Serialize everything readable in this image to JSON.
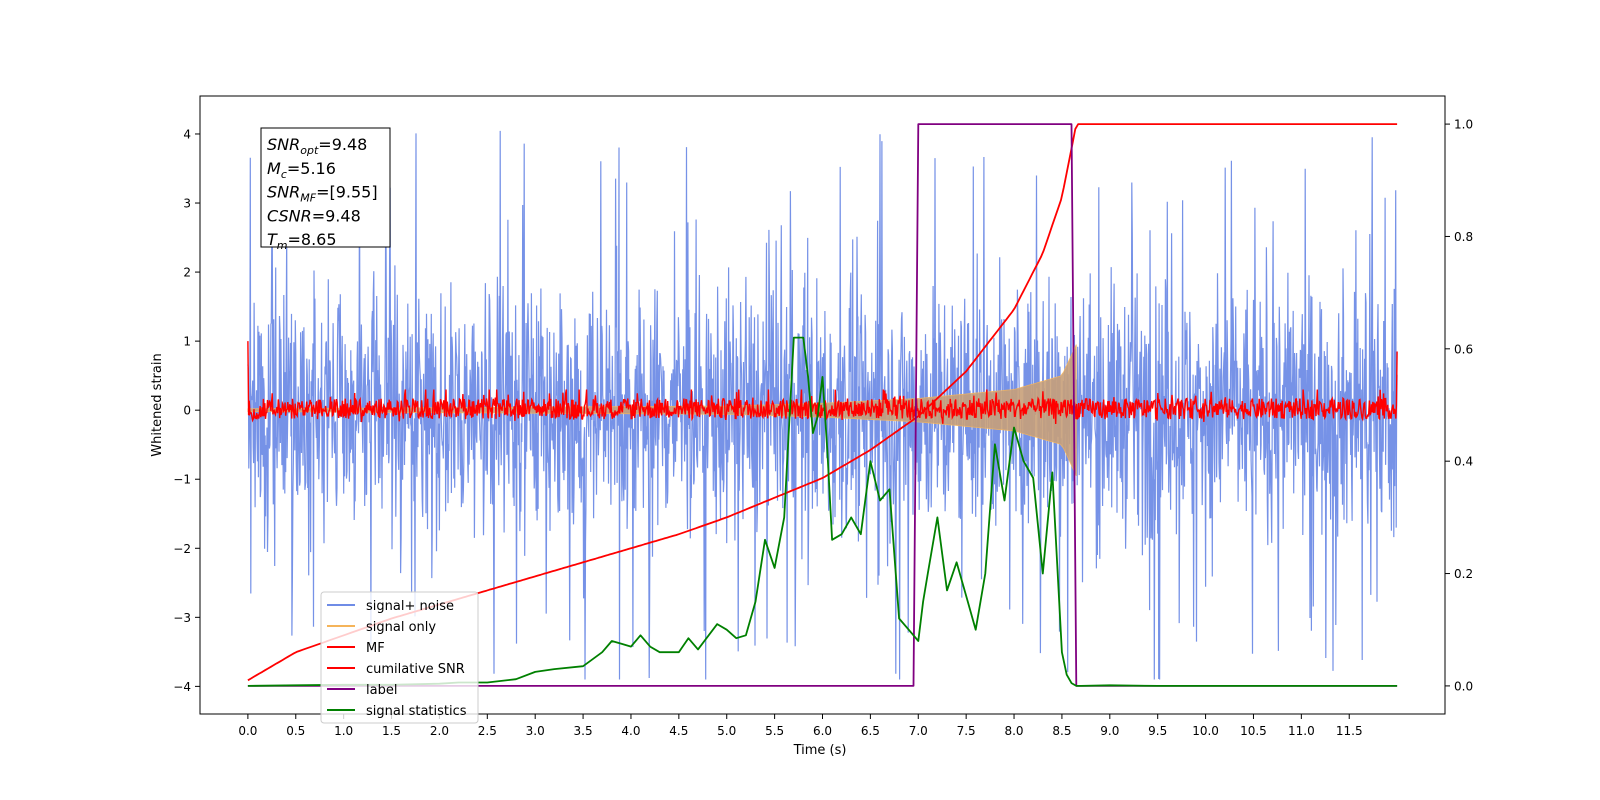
{
  "chart_data": {
    "type": "line",
    "xlabel": "Time (s)",
    "ylabel": "Whitened strain",
    "xlim": [
      -0.5,
      12.5
    ],
    "ylim": [
      -4.4,
      4.55
    ],
    "y2lim": [
      -0.05,
      1.05
    ],
    "x_ticks": [
      0.0,
      0.5,
      1.0,
      1.5,
      2.0,
      2.5,
      3.0,
      3.5,
      4.0,
      4.5,
      5.0,
      5.5,
      6.0,
      6.5,
      7.0,
      7.5,
      8.0,
      8.5,
      9.0,
      9.5,
      10.0,
      10.5,
      11.0,
      11.5
    ],
    "x_tick_labels": [
      "0.0",
      "0.5",
      "1.0",
      "1.5",
      "2.0",
      "2.5",
      "3.0",
      "3.5",
      "4.0",
      "4.5",
      "5.0",
      "5.5",
      "6.0",
      "6.5",
      "7.0",
      "7.5",
      "8.0",
      "8.5",
      "9.0",
      "9.5",
      "10.0",
      "10.5",
      "11.0",
      "11.5"
    ],
    "y_ticks": [
      -4,
      -3,
      -2,
      -1,
      0,
      1,
      2,
      3,
      4
    ],
    "y_tick_labels": [
      "−4",
      "−3",
      "−2",
      "−1",
      "0",
      "1",
      "2",
      "3",
      "4"
    ],
    "y2_ticks": [
      0.0,
      0.2,
      0.4,
      0.6,
      0.8,
      1.0
    ],
    "y2_tick_labels": [
      "0.0",
      "0.2",
      "0.4",
      "0.6",
      "0.8",
      "1.0"
    ],
    "grid": false,
    "legend_position": "bottom-left",
    "colors": {
      "signal_noise": "#6f8ce6",
      "signal_only": "#f5b45a",
      "mf": "#ff0000",
      "cumulative_snr": "#ff0000",
      "label": "#800080",
      "signal_statistics": "#008000"
    },
    "series": [
      {
        "name": "signal+ noise",
        "color": "#6f8ce6",
        "t_start": 0.0,
        "t_end": 12.0,
        "amplitude_envelope": [
          -3.9,
          4.15
        ],
        "note_values": "noisy, approximately symmetric about 0"
      },
      {
        "name": "signal only",
        "color": "#f5b45a",
        "x": [
          0.0,
          5.0,
          6.0,
          7.0,
          8.0,
          8.5,
          8.65
        ],
        "y_envelope": [
          0.02,
          0.06,
          0.1,
          0.17,
          0.3,
          0.5,
          0.95
        ]
      },
      {
        "name": "MF",
        "color": "#ff0000",
        "t_start": 0.0,
        "t_end": 12.0,
        "y_range": [
          -0.2,
          0.3
        ],
        "edge_values": [
          1.0,
          0.85
        ]
      },
      {
        "name": "cumilative SNR",
        "color": "#ff0000",
        "axis": "right",
        "x": [
          0.0,
          0.5,
          1.0,
          1.5,
          2.0,
          2.5,
          3.0,
          3.5,
          4.0,
          4.5,
          5.0,
          5.5,
          6.0,
          6.5,
          7.0,
          7.5,
          8.0,
          8.3,
          8.5,
          8.65,
          9.0,
          10.0,
          11.0,
          11.5,
          12.0
        ],
        "y": [
          0.01,
          0.06,
          0.09,
          0.12,
          0.145,
          0.17,
          0.195,
          0.22,
          0.245,
          0.27,
          0.3,
          0.335,
          0.37,
          0.42,
          0.48,
          0.56,
          0.67,
          0.77,
          0.87,
          1.0,
          1.0,
          1.0,
          1.0,
          1.0,
          1.0
        ]
      },
      {
        "name": "label",
        "color": "#800080",
        "axis": "right",
        "x": [
          0.0,
          6.95,
          7.0,
          8.6,
          8.65,
          12.0
        ],
        "y": [
          0.0,
          0.0,
          1.0,
          1.0,
          0.0,
          0.0
        ]
      },
      {
        "name": "signal statistics",
        "color": "#008000",
        "axis": "right",
        "x": [
          0.0,
          0.5,
          1.0,
          1.5,
          2.0,
          2.2,
          2.5,
          2.8,
          3.0,
          3.2,
          3.5,
          3.7,
          3.8,
          3.9,
          4.0,
          4.1,
          4.2,
          4.3,
          4.5,
          4.6,
          4.7,
          4.9,
          5.0,
          5.1,
          5.2,
          5.3,
          5.4,
          5.5,
          5.6,
          5.7,
          5.75,
          5.8,
          5.85,
          5.9,
          5.95,
          6.0,
          6.05,
          6.1,
          6.2,
          6.3,
          6.4,
          6.5,
          6.6,
          6.7,
          6.8,
          6.9,
          7.0,
          7.05,
          7.1,
          7.2,
          7.3,
          7.4,
          7.5,
          7.6,
          7.7,
          7.8,
          7.9,
          8.0,
          8.1,
          8.2,
          8.3,
          8.4,
          8.5,
          8.55,
          8.6,
          8.65,
          8.7,
          9.0,
          9.5,
          10.0,
          11.0,
          12.0
        ],
        "y": [
          0.0,
          0.001,
          0.002,
          0.002,
          0.004,
          0.006,
          0.006,
          0.012,
          0.025,
          0.03,
          0.035,
          0.06,
          0.08,
          0.075,
          0.07,
          0.09,
          0.07,
          0.06,
          0.06,
          0.085,
          0.065,
          0.11,
          0.1,
          0.085,
          0.09,
          0.15,
          0.26,
          0.21,
          0.3,
          0.62,
          0.62,
          0.62,
          0.55,
          0.45,
          0.48,
          0.55,
          0.42,
          0.26,
          0.27,
          0.3,
          0.27,
          0.4,
          0.33,
          0.35,
          0.12,
          0.1,
          0.08,
          0.15,
          0.2,
          0.3,
          0.17,
          0.22,
          0.16,
          0.1,
          0.2,
          0.43,
          0.33,
          0.46,
          0.4,
          0.37,
          0.2,
          0.38,
          0.06,
          0.02,
          0.005,
          0.0,
          0.0,
          0.001,
          0.0,
          0.0,
          0.0,
          0.0
        ]
      }
    ],
    "annotations": [
      {
        "symbol": "SNR",
        "sub": "opt",
        "value": "=9.48"
      },
      {
        "symbol": "M",
        "sub": "c",
        "value": "=5.16"
      },
      {
        "symbol": "SNR",
        "sub": "MF",
        "value": "=[9.55]"
      },
      {
        "symbol": "CSNR",
        "sub": "",
        "value": "=9.48"
      },
      {
        "symbol": "T",
        "sub": "m",
        "value": "=8.65"
      }
    ]
  }
}
